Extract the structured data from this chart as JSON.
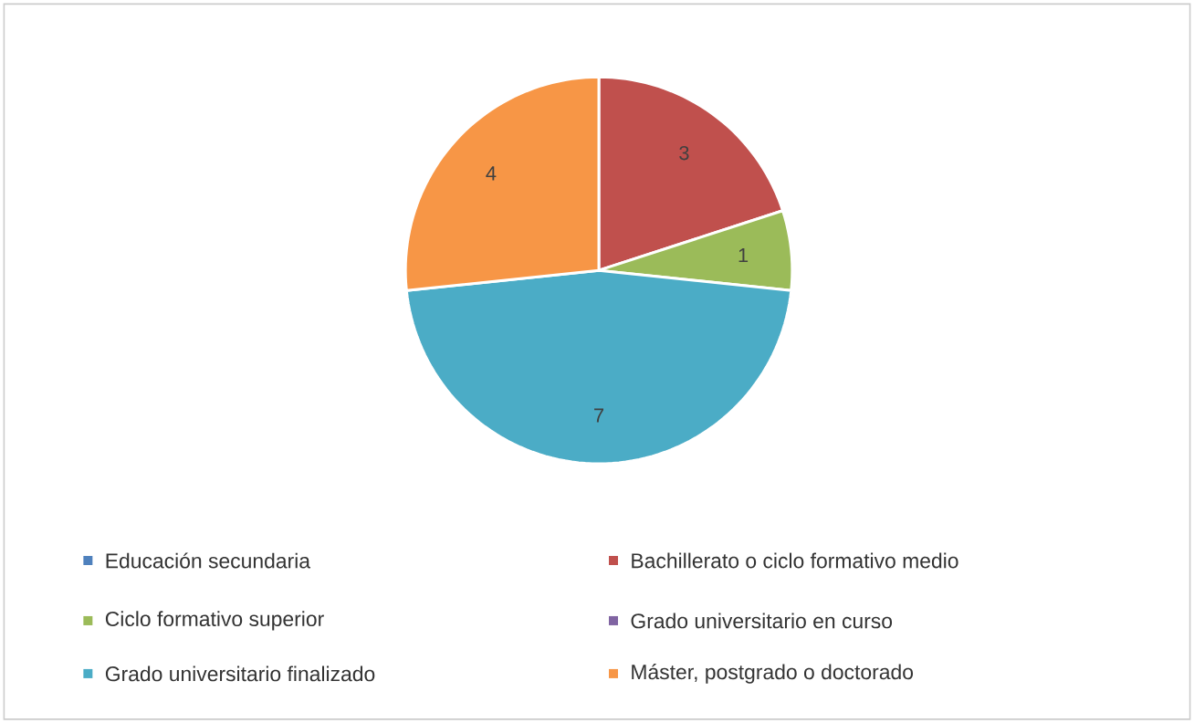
{
  "chart_data": {
    "type": "pie",
    "categories": [
      "Educación secundaria",
      "Bachillerato o ciclo formativo medio",
      "Ciclo formativo superior",
      "Grado universitario en curso",
      "Grado universitario finalizado",
      "Máster, postgrado o doctorado"
    ],
    "values": [
      0,
      3,
      1,
      0,
      7,
      4
    ],
    "value_labels": [
      null,
      "3",
      "1",
      null,
      "7",
      "4"
    ],
    "colors": [
      "#4f81bd",
      "#c0504d",
      "#9bbb59",
      "#8064a2",
      "#4bacc6",
      "#f79646"
    ],
    "legend": "bottom"
  }
}
